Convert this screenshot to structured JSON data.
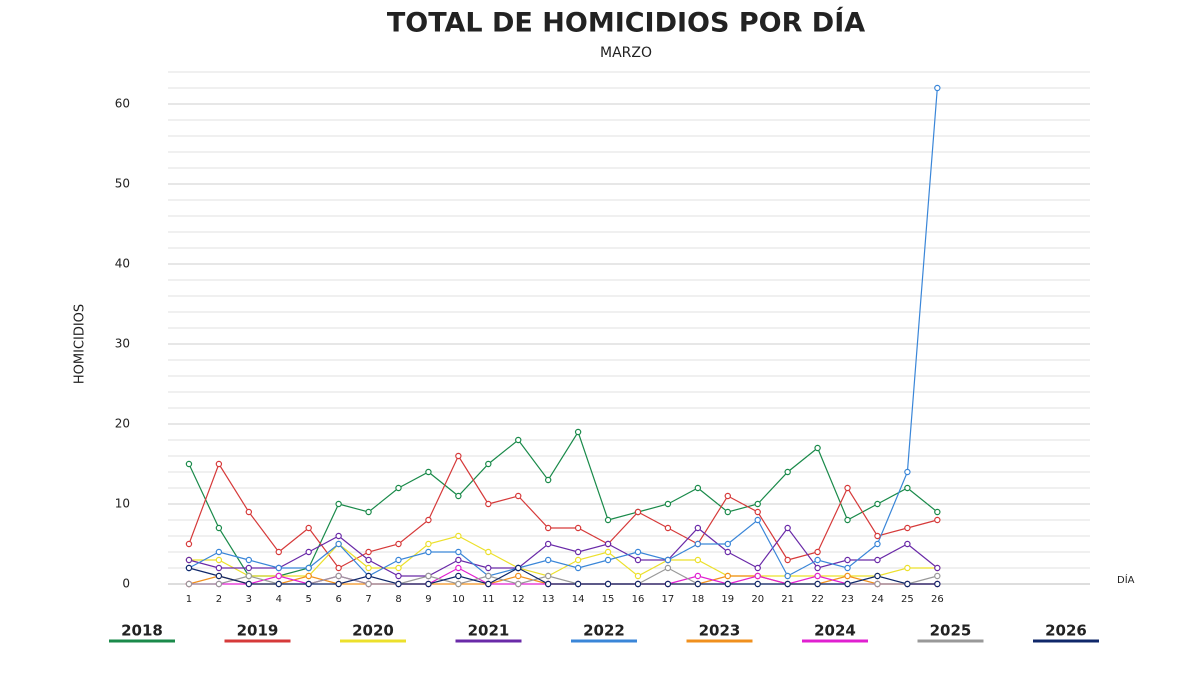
{
  "chart_data": {
    "type": "line",
    "title": "TOTAL DE HOMICIDIOS POR DÍA",
    "subtitle": "MARZO",
    "y_label": "HOMICIDIOS",
    "x_label": "DÍA",
    "x": [
      1,
      2,
      3,
      4,
      5,
      6,
      7,
      8,
      9,
      10,
      11,
      12,
      13,
      14,
      15,
      16,
      17,
      18,
      19,
      20,
      21,
      22,
      23,
      24,
      25,
      26
    ],
    "xlim": [
      0.3,
      31.1
    ],
    "xticks": [
      1,
      2,
      3,
      4,
      5,
      6,
      7,
      8,
      9,
      10,
      11,
      12,
      13,
      14,
      15,
      16,
      17,
      18,
      19,
      20,
      21,
      22,
      23,
      24,
      25,
      26
    ],
    "ylim": [
      0,
      64
    ],
    "yticks": [
      0,
      10,
      20,
      30,
      40,
      50,
      60
    ],
    "minor_yticks": [
      2,
      4,
      6,
      8,
      12,
      14,
      16,
      18,
      22,
      24,
      26,
      28,
      32,
      34,
      36,
      38,
      42,
      44,
      46,
      48,
      52,
      54,
      56,
      58,
      62,
      64
    ],
    "grid": true,
    "legend": "bottom",
    "series": [
      {
        "name": "2018",
        "color": "#1a8a4a",
        "values": [
          15,
          7,
          1,
          1,
          2,
          10,
          9,
          12,
          14,
          11,
          15,
          18,
          13,
          19,
          8,
          9,
          10,
          12,
          9,
          10,
          14,
          17,
          8,
          10,
          12,
          9
        ]
      },
      {
        "name": "2019",
        "color": "#d63a3a",
        "values": [
          5,
          15,
          9,
          4,
          7,
          2,
          4,
          5,
          8,
          16,
          10,
          11,
          7,
          7,
          5,
          9,
          7,
          5,
          11,
          9,
          3,
          4,
          12,
          6,
          7,
          8
        ]
      },
      {
        "name": "2020",
        "color": "#ece02c",
        "values": [
          3,
          3,
          1,
          1,
          1,
          5,
          2,
          2,
          5,
          6,
          4,
          2,
          1,
          3,
          4,
          1,
          3,
          3,
          1,
          1,
          1,
          1,
          1,
          1,
          2,
          2
        ]
      },
      {
        "name": "2021",
        "color": "#6a2aa8",
        "values": [
          3,
          2,
          2,
          2,
          4,
          6,
          3,
          1,
          1,
          3,
          2,
          2,
          5,
          4,
          5,
          3,
          3,
          7,
          4,
          2,
          7,
          2,
          3,
          3,
          5,
          2
        ]
      },
      {
        "name": "2022",
        "color": "#3a86d8",
        "values": [
          2,
          4,
          3,
          2,
          2,
          5,
          1,
          3,
          4,
          4,
          1,
          2,
          3,
          2,
          3,
          4,
          3,
          5,
          5,
          8,
          1,
          3,
          2,
          5,
          14,
          62
        ]
      },
      {
        "name": "2023",
        "color": "#f0901e",
        "values": [
          0,
          1,
          0,
          0,
          1,
          0,
          0,
          0,
          0,
          0,
          0,
          1,
          0,
          0,
          0,
          0,
          0,
          0,
          1,
          1,
          0,
          0,
          1,
          0,
          0,
          0
        ]
      },
      {
        "name": "2024",
        "color": "#e020d0",
        "values": [
          0,
          0,
          0,
          1,
          0,
          1,
          0,
          0,
          0,
          2,
          0,
          0,
          0,
          0,
          0,
          0,
          0,
          1,
          0,
          1,
          0,
          1,
          0,
          0,
          0,
          0
        ]
      },
      {
        "name": "2025",
        "color": "#999999",
        "values": [
          0,
          0,
          1,
          0,
          0,
          1,
          0,
          0,
          1,
          0,
          1,
          0,
          1,
          0,
          0,
          0,
          2,
          0,
          0,
          0,
          0,
          0,
          0,
          0,
          0,
          1
        ]
      },
      {
        "name": "2026",
        "color": "#10286a",
        "values": [
          2,
          1,
          0,
          0,
          0,
          0,
          1,
          0,
          0,
          1,
          0,
          2,
          0,
          0,
          0,
          0,
          0,
          0,
          0,
          0,
          0,
          0,
          0,
          1,
          0,
          0
        ]
      }
    ]
  }
}
